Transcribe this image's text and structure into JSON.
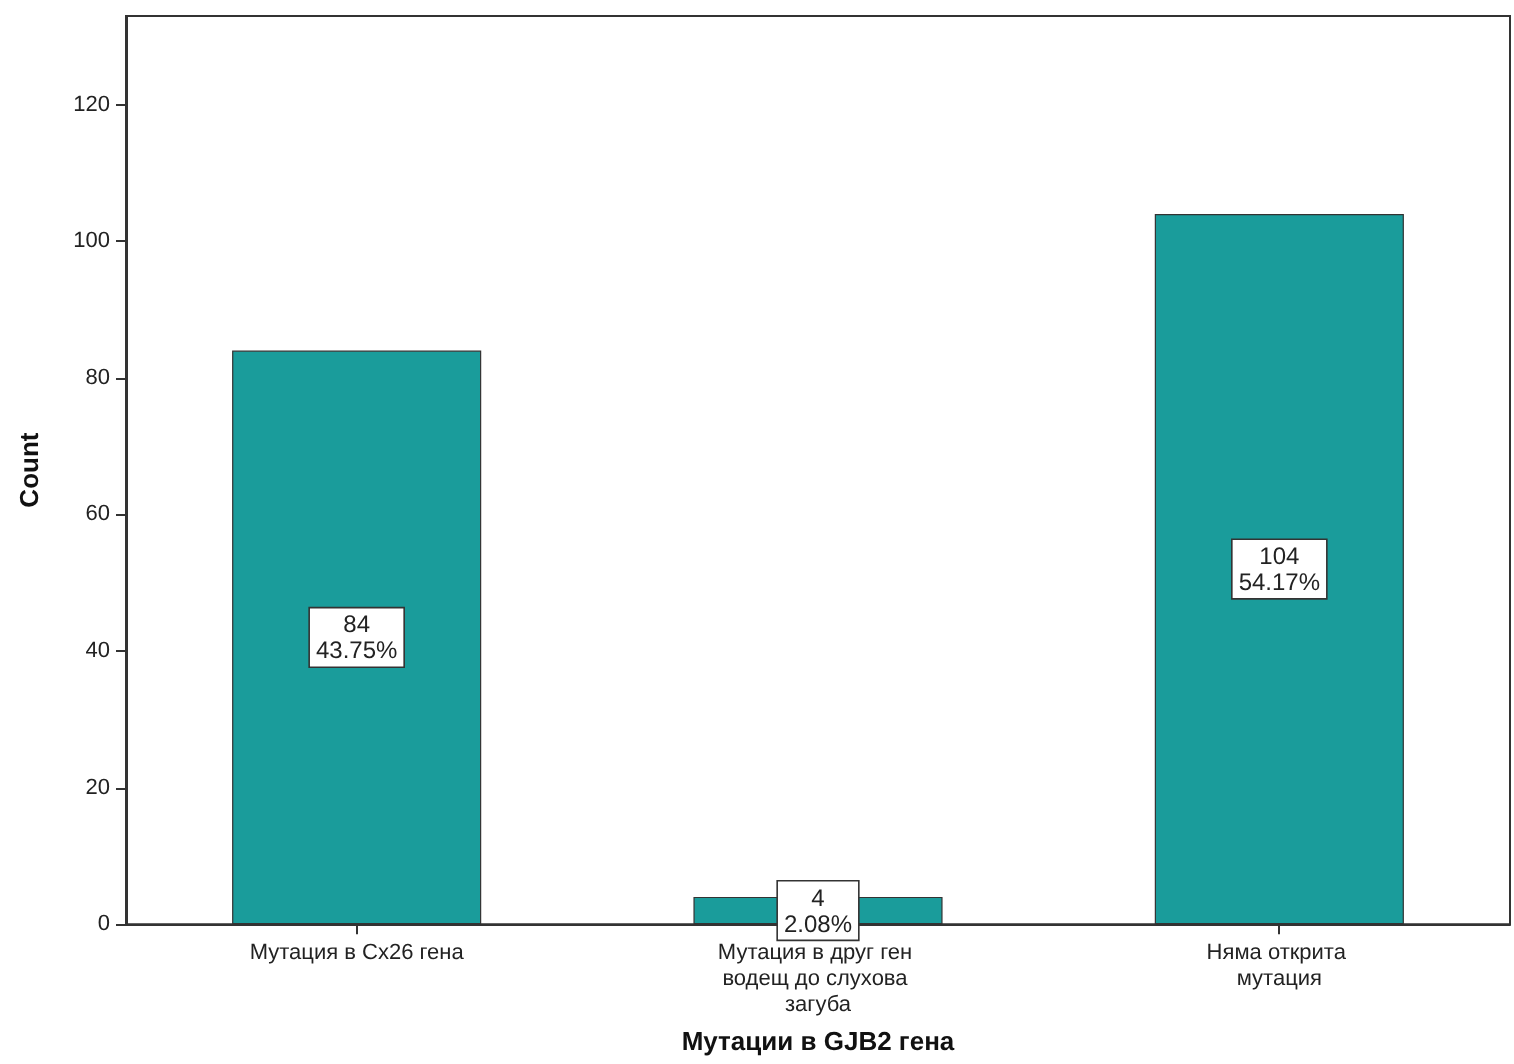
{
  "chart_data": {
    "type": "bar",
    "xlabel": "Мутации в GJB2 гена",
    "ylabel": "Count",
    "categories": [
      "Мутация в Cx26 гена",
      "Мутация в друг ген водещ до слухова загуба",
      "Няма открита мутация"
    ],
    "values": [
      84,
      4,
      104
    ],
    "value_labels": [
      "84\n43.75%",
      "4\n2.08%",
      "104\n54.17%"
    ],
    "color": "#1a9c9b",
    "ylim": [
      0,
      133
    ],
    "yticks": [
      0,
      20,
      40,
      60,
      80,
      100,
      120
    ],
    "grid": false
  }
}
